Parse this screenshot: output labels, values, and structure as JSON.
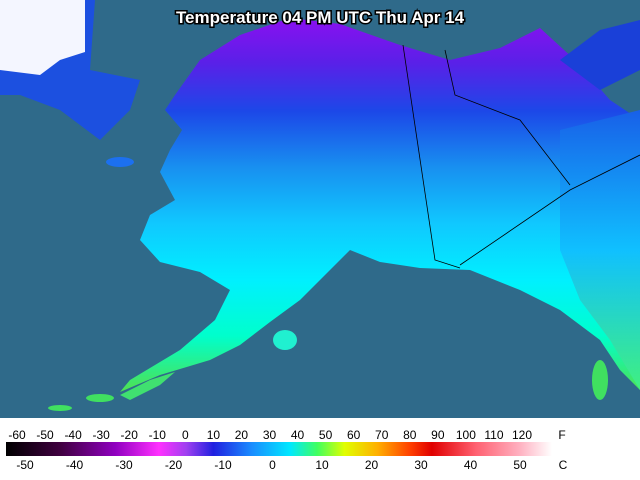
{
  "map": {
    "title": "Temperature 04 PM UTC Thu Apr 14"
  },
  "legend": {
    "fahrenheit": {
      "unit": "F",
      "ticks": [
        -60,
        -50,
        -40,
        -30,
        -20,
        -10,
        0,
        10,
        20,
        30,
        40,
        50,
        60,
        70,
        80,
        90,
        100,
        110,
        120
      ]
    },
    "celsius": {
      "unit": "C",
      "ticks": [
        -50,
        -40,
        -30,
        -20,
        -10,
        0,
        10,
        20,
        30,
        40,
        50
      ]
    }
  }
}
